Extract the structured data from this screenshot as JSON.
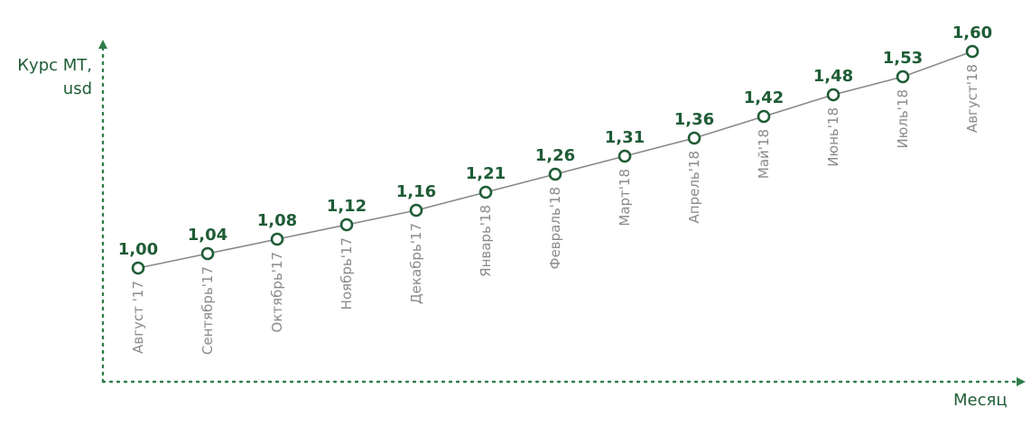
{
  "chart_data": {
    "type": "line",
    "categories": [
      "Август '17",
      "Сентябрь'17",
      "Октябрь'17",
      "Ноябрь'17",
      "Декабрь'17",
      "Январь'18",
      "Февраль'18",
      "Март'18",
      "Апрель'18",
      "Май'18",
      "Июнь'18",
      "Июль'18",
      "Август'18"
    ],
    "value_labels": [
      "1,00",
      "1,04",
      "1,08",
      "1,12",
      "1,16",
      "1,21",
      "1,26",
      "1,31",
      "1,36",
      "1,42",
      "1,48",
      "1,53",
      "1,60"
    ],
    "values": [
      1.0,
      1.04,
      1.08,
      1.12,
      1.16,
      1.21,
      1.26,
      1.31,
      1.36,
      1.42,
      1.48,
      1.53,
      1.6
    ],
    "ylabel_lines": [
      "Курс МТ,",
      "usd"
    ],
    "xlabel": "Месяц",
    "grid": false,
    "colors": {
      "accent": "#1f5c36",
      "line": "#888888",
      "category_text": "#8a8a8a",
      "axis": "#2e7d4a"
    }
  }
}
